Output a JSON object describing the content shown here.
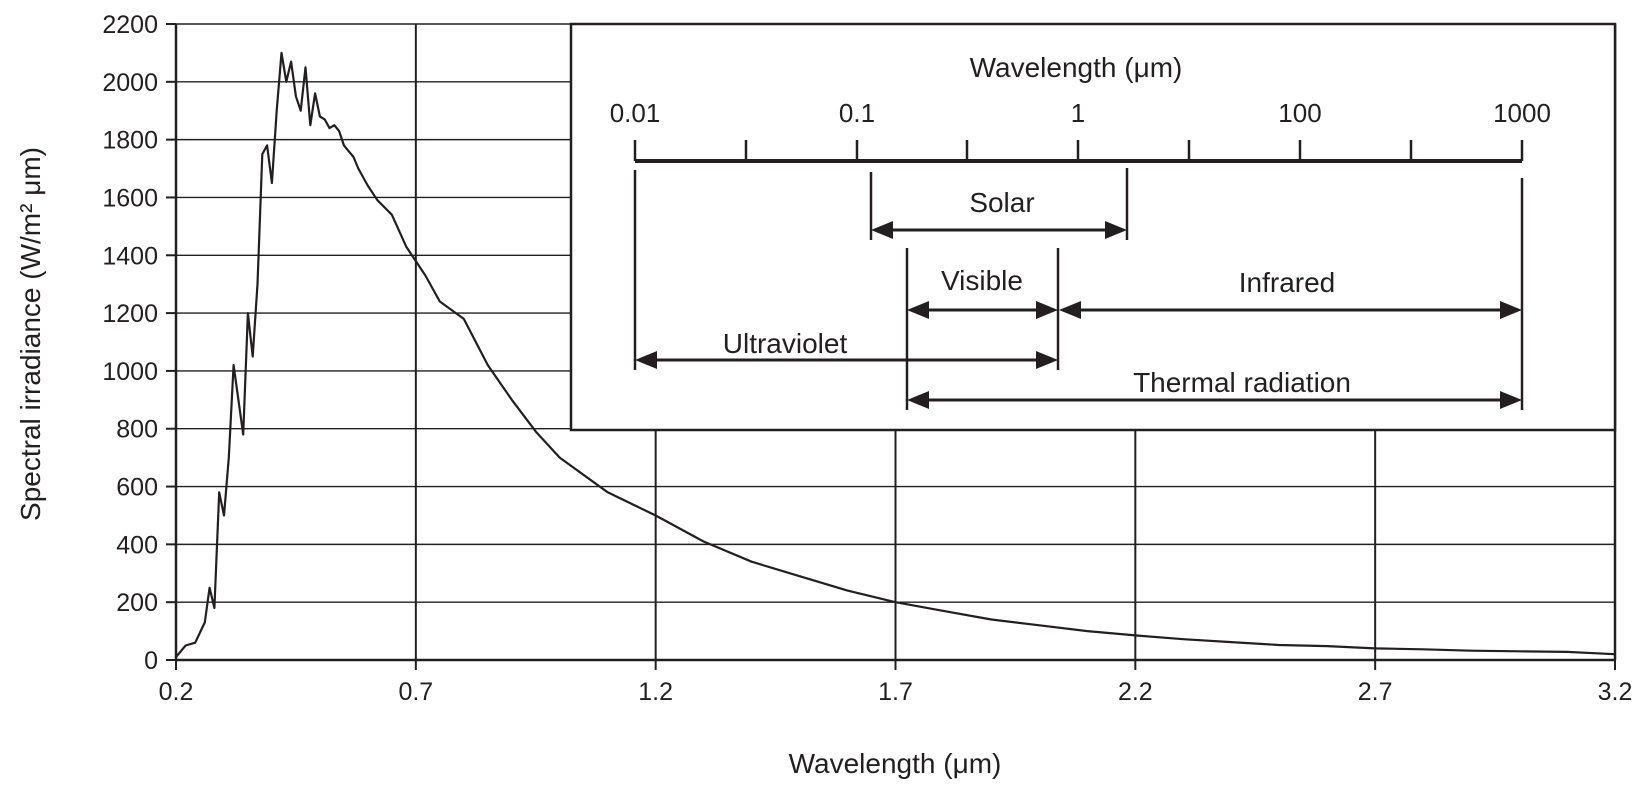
{
  "chart_data": {
    "type": "line",
    "xlabel": "Wavelength (μm)",
    "ylabel": "Spectral irradiance (W/m² μm)",
    "xlim": [
      0.2,
      3.2
    ],
    "ylim": [
      0,
      2200
    ],
    "x_ticks": [
      "0.2",
      "0.7",
      "1.2",
      "1.7",
      "2.2",
      "2.7",
      "3.2"
    ],
    "y_ticks": [
      "0",
      "200",
      "400",
      "600",
      "800",
      "1000",
      "1200",
      "1400",
      "1600",
      "1800",
      "2000",
      "2200"
    ],
    "grid": true,
    "line_color": "#231f20",
    "series": [
      {
        "name": "",
        "x": [
          0.2,
          0.22,
          0.24,
          0.26,
          0.27,
          0.28,
          0.29,
          0.3,
          0.31,
          0.32,
          0.33,
          0.34,
          0.35,
          0.36,
          0.37,
          0.38,
          0.39,
          0.4,
          0.41,
          0.42,
          0.43,
          0.44,
          0.45,
          0.46,
          0.47,
          0.48,
          0.49,
          0.5,
          0.51,
          0.52,
          0.53,
          0.54,
          0.55,
          0.56,
          0.57,
          0.58,
          0.6,
          0.62,
          0.65,
          0.68,
          0.7,
          0.72,
          0.75,
          0.8,
          0.85,
          0.9,
          0.95,
          1.0,
          1.1,
          1.2,
          1.3,
          1.4,
          1.5,
          1.6,
          1.7,
          1.8,
          1.9,
          2.0,
          2.1,
          2.2,
          2.3,
          2.4,
          2.5,
          2.6,
          2.7,
          2.8,
          2.9,
          3.0,
          3.1,
          3.2
        ],
        "y": [
          10,
          50,
          60,
          130,
          250,
          180,
          580,
          500,
          700,
          1020,
          900,
          780,
          1200,
          1050,
          1300,
          1750,
          1780,
          1650,
          1900,
          2100,
          2000,
          2070,
          1950,
          1900,
          2050,
          1850,
          1960,
          1880,
          1870,
          1840,
          1850,
          1830,
          1780,
          1760,
          1740,
          1700,
          1640,
          1590,
          1540,
          1430,
          1380,
          1330,
          1240,
          1180,
          1020,
          900,
          790,
          700,
          580,
          500,
          410,
          340,
          290,
          240,
          200,
          170,
          140,
          120,
          100,
          85,
          72,
          62,
          52,
          48,
          40,
          37,
          32,
          30,
          28,
          20
        ]
      }
    ]
  },
  "inset": {
    "title": "Wavelength (μm)",
    "scale_labels": [
      "0.01",
      "0.1",
      "1",
      "100",
      "1000"
    ],
    "bands": {
      "solar": "Solar",
      "visible": "Visible",
      "infrared": "Infrared",
      "ultraviolet": "Ultraviolet",
      "thermal": "Thermal radiation"
    }
  }
}
